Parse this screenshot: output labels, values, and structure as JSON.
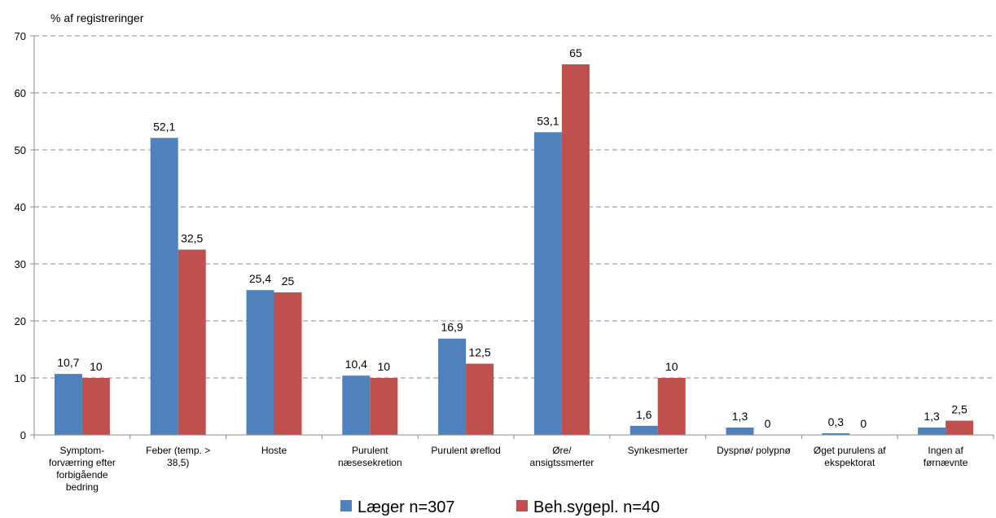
{
  "chart_data": {
    "type": "bar",
    "ylabel": "% af  registreringer",
    "ylim": [
      0,
      70
    ],
    "yticks": [
      0,
      10,
      20,
      30,
      40,
      50,
      60,
      70
    ],
    "grid": true,
    "legend_position": "bottom",
    "categories": [
      [
        "Symptom-",
        "forværring efter",
        "forbigående",
        "bedring"
      ],
      [
        "Feber (temp. >",
        "38,5)"
      ],
      [
        "Hoste"
      ],
      [
        "Purulent",
        "næsesekretion"
      ],
      [
        "Purulent øreflod"
      ],
      [
        "Øre/",
        "ansigtssmerter"
      ],
      [
        "Synkesmerter"
      ],
      [
        "Dyspnø/ polypnø"
      ],
      [
        "Øget purulens af",
        "ekspektorat"
      ],
      [
        "Ingen af",
        "førnævnte"
      ]
    ],
    "series": [
      {
        "name": "Læger n=307",
        "color": "#4F81BD",
        "values": [
          10.7,
          52.1,
          25.4,
          10.4,
          16.9,
          53.1,
          1.6,
          1.3,
          0.3,
          1.3
        ],
        "labels": [
          "10,7",
          "52,1",
          "25,4",
          "10,4",
          "16,9",
          "53,1",
          "1,6",
          "1,3",
          "0,3",
          "1,3"
        ]
      },
      {
        "name": "Beh.sygepl. n=40",
        "color": "#C0504D",
        "values": [
          10,
          32.5,
          25,
          10,
          12.5,
          65,
          10,
          0,
          0,
          2.5
        ],
        "labels": [
          "10",
          "32,5",
          "25",
          "10",
          "12,5",
          "65",
          "10",
          "0",
          "0",
          "2,5"
        ]
      }
    ]
  }
}
